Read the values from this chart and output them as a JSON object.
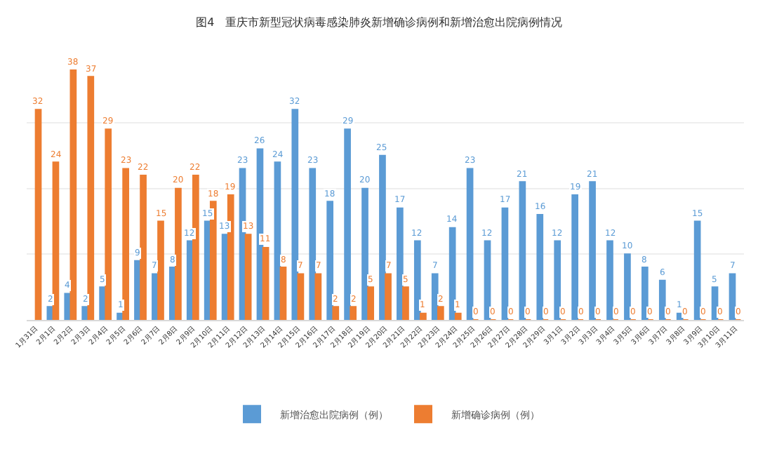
{
  "chart_data": {
    "type": "bar",
    "title": "图4   重庆市新型冠状病毒感染肺炎新增确诊病例和新增治愈出院病例情况",
    "categories": [
      "1月31日",
      "2月1日",
      "2月2日",
      "2月3日",
      "2月4日",
      "2月5日",
      "2月6日",
      "2月7日",
      "2月8日",
      "2月9日",
      "2月10日",
      "2月11日",
      "2月12日",
      "2月13日",
      "2月14日",
      "2月15日",
      "2月16日",
      "2月17日",
      "2月18日",
      "2月19日",
      "2月20日",
      "2月21日",
      "2月22日",
      "2月23日",
      "2月24日",
      "2月25日",
      "2月26日",
      "2月27日",
      "2月28日",
      "2月29日",
      "3月1日",
      "3月2日",
      "3月3日",
      "3月4日",
      "3月5日",
      "3月6日",
      "3月7日",
      "3月8日",
      "3月9日",
      "3月10日",
      "3月11日"
    ],
    "series": [
      {
        "name": "新增治愈出院病例（例）",
        "color": "#5b9bd5",
        "values": [
          null,
          2,
          4,
          2,
          5,
          1,
          9,
          7,
          8,
          12,
          15,
          13,
          23,
          26,
          24,
          32,
          23,
          18,
          29,
          20,
          25,
          17,
          12,
          7,
          14,
          23,
          12,
          17,
          21,
          16,
          12,
          19,
          21,
          12,
          10,
          8,
          6,
          1,
          15,
          5,
          7
        ]
      },
      {
        "name": "新增确诊病例（例）",
        "color": "#ed7d31",
        "values": [
          32,
          24,
          38,
          37,
          29,
          23,
          22,
          15,
          20,
          22,
          18,
          19,
          13,
          11,
          8,
          7,
          7,
          2,
          2,
          5,
          7,
          5,
          1,
          2,
          1,
          0,
          0,
          0,
          0,
          0,
          0,
          0,
          0,
          0,
          0,
          0,
          0,
          0,
          0,
          0,
          0
        ]
      }
    ],
    "tick_labels": "x",
    "grid": "y",
    "data_labels": true,
    "legend": "bottom"
  }
}
